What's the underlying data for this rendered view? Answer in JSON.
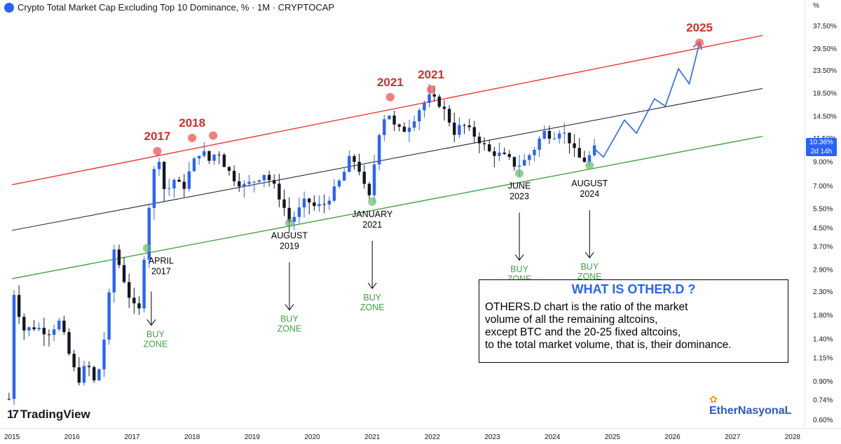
{
  "header": {
    "title": "Crypto Total Market Cap Excluding Top 10 Dominance, % · 1M · CRYPTOCAP",
    "title_icon": "crypto-cap-icon",
    "unit_label": "%"
  },
  "branding": {
    "logo_text": "TradingView",
    "logo_mark": "17",
    "author": "EtherNasyonaL"
  },
  "price_tag": {
    "value": "10.36%",
    "countdown": "2d 14h"
  },
  "info_box": {
    "title": "WHAT IS OTHER.D ?",
    "lines": [
      "OTHERS.D chart is the ratio of the market",
      "volume of all the remaining altcoins,",
      "except BTC and the 20-25 fixed altcoins,",
      "to the total market volume, that is, their dominance."
    ]
  },
  "colors": {
    "up": "#2962ff",
    "down": "#131722",
    "upper_channel": "#e53935",
    "mid_channel": "#131722",
    "lower_channel": "#43a047",
    "projection": "#2962ff",
    "buy_zone": "#43a047",
    "year_marker": "#d32f2f"
  },
  "chart_data": {
    "type": "candlestick",
    "y_scale": "log",
    "ylim": [
      0.6,
      42
    ],
    "xlim": [
      2014.8,
      2028.2
    ],
    "x_ticks": [
      "2015",
      "2016",
      "2017",
      "2018",
      "2019",
      "2020",
      "2021",
      "2022",
      "2023",
      "2024",
      "2025",
      "2026",
      "2027",
      "2028"
    ],
    "y_ticks": [
      "37.50%",
      "29.50%",
      "23.50%",
      "18.50%",
      "14.50%",
      "11.50%",
      "9.00%",
      "7.00%",
      "5.50%",
      "4.50%",
      "3.70%",
      "2.90%",
      "2.30%",
      "1.80%",
      "1.40%",
      "1.15%",
      "0.90%",
      "0.74%",
      "0.60%"
    ],
    "y_tick_values": [
      37.5,
      29.5,
      23.5,
      18.5,
      14.5,
      11.5,
      9.0,
      7.0,
      5.5,
      4.5,
      3.7,
      2.9,
      2.3,
      1.8,
      1.4,
      1.15,
      0.9,
      0.74,
      0.6
    ],
    "channels": [
      {
        "name": "upper",
        "points": [
          [
            2015.0,
            7.1
          ],
          [
            2027.5,
            34.0
          ]
        ]
      },
      {
        "name": "middle",
        "points": [
          [
            2015.0,
            4.4
          ],
          [
            2027.5,
            19.5
          ]
        ]
      },
      {
        "name": "lower",
        "points": [
          [
            2015.0,
            2.65
          ],
          [
            2027.5,
            11.8
          ]
        ]
      }
    ],
    "candle_path": [
      [
        2014.95,
        0.75
      ],
      [
        2015.0,
        2.5
      ],
      [
        2015.1,
        1.9
      ],
      [
        2015.2,
        1.55
      ],
      [
        2015.4,
        1.6
      ],
      [
        2015.6,
        1.5
      ],
      [
        2015.8,
        1.7
      ],
      [
        2015.95,
        1.2
      ],
      [
        2016.1,
        0.9
      ],
      [
        2016.25,
        1.1
      ],
      [
        2016.4,
        0.85
      ],
      [
        2016.55,
        1.5
      ],
      [
        2016.7,
        3.6
      ],
      [
        2016.85,
        2.7
      ],
      [
        2017.0,
        2.0
      ],
      [
        2017.12,
        1.9
      ],
      [
        2017.25,
        4.8
      ],
      [
        2017.35,
        8.0
      ],
      [
        2017.45,
        9.4
      ],
      [
        2017.55,
        6.4
      ],
      [
        2017.7,
        7.5
      ],
      [
        2017.85,
        6.8
      ],
      [
        2018.0,
        8.8
      ],
      [
        2018.15,
        10.3
      ],
      [
        2018.3,
        9.0
      ],
      [
        2018.42,
        10.4
      ],
      [
        2018.55,
        8.6
      ],
      [
        2018.7,
        7.6
      ],
      [
        2018.85,
        7.0
      ],
      [
        2019.0,
        7.3
      ],
      [
        2019.2,
        8.0
      ],
      [
        2019.35,
        7.1
      ],
      [
        2019.5,
        5.9
      ],
      [
        2019.62,
        4.8
      ],
      [
        2019.75,
        5.3
      ],
      [
        2019.9,
        6.1
      ],
      [
        2020.05,
        5.6
      ],
      [
        2020.2,
        5.8
      ],
      [
        2020.35,
        6.6
      ],
      [
        2020.5,
        7.7
      ],
      [
        2020.62,
        9.3
      ],
      [
        2020.75,
        9.0
      ],
      [
        2020.85,
        7.1
      ],
      [
        2020.95,
        6.2
      ],
      [
        2021.0,
        7.6
      ],
      [
        2021.1,
        12.0
      ],
      [
        2021.25,
        15.8
      ],
      [
        2021.35,
        13.2
      ],
      [
        2021.5,
        12.4
      ],
      [
        2021.65,
        13.6
      ],
      [
        2021.8,
        16.0
      ],
      [
        2021.95,
        17.8
      ],
      [
        2022.1,
        16.9
      ],
      [
        2022.25,
        14.8
      ],
      [
        2022.35,
        12.2
      ],
      [
        2022.5,
        13.4
      ],
      [
        2022.65,
        12.3
      ],
      [
        2022.8,
        11.2
      ],
      [
        2022.95,
        10.0
      ],
      [
        2023.1,
        9.8
      ],
      [
        2023.25,
        9.4
      ],
      [
        2023.4,
        8.6
      ],
      [
        2023.55,
        9.2
      ],
      [
        2023.7,
        10.4
      ],
      [
        2023.85,
        12.4
      ],
      [
        2024.0,
        11.8
      ],
      [
        2024.12,
        12.6
      ],
      [
        2024.25,
        11.8
      ],
      [
        2024.4,
        9.6
      ],
      [
        2024.52,
        9.1
      ],
      [
        2024.62,
        9.6
      ],
      [
        2024.7,
        10.36
      ]
    ],
    "projection": [
      [
        2024.7,
        10.36
      ],
      [
        2024.85,
        9.5
      ],
      [
        2025.2,
        14.0
      ],
      [
        2025.4,
        12.2
      ],
      [
        2025.7,
        17.5
      ],
      [
        2025.88,
        16.2
      ],
      [
        2026.1,
        24.0
      ],
      [
        2026.28,
        20.5
      ],
      [
        2026.45,
        31.5
      ]
    ],
    "tops": [
      {
        "label": "2017",
        "x": 2017.42,
        "y": 10.1
      },
      {
        "label": "2018",
        "x": 2018.0,
        "y": 11.6
      },
      {
        "label": "",
        "x": 2018.35,
        "y": 11.9
      },
      {
        "label": "2021",
        "x": 2021.3,
        "y": 17.8
      },
      {
        "label": "2021",
        "x": 2021.98,
        "y": 19.3
      },
      {
        "label": "2025",
        "x": 2026.45,
        "y": 31.5
      }
    ],
    "bottoms": [
      {
        "label_lines": [
          "APRIL",
          "2017"
        ],
        "x": 2017.25,
        "y": 3.65,
        "buy_zone": true
      },
      {
        "label_lines": [
          "AUGUST",
          "2019"
        ],
        "x": 2019.62,
        "y": 4.75,
        "buy_zone": true
      },
      {
        "label_lines": [
          "JANUARY",
          "2021"
        ],
        "x": 2021.0,
        "y": 5.95,
        "buy_zone": true
      },
      {
        "label_lines": [
          "JUNE",
          "2023"
        ],
        "x": 2023.45,
        "y": 8.0,
        "buy_zone": true
      },
      {
        "label_lines": [
          "AUGUST",
          "2024"
        ],
        "x": 2024.62,
        "y": 8.7,
        "buy_zone": true
      }
    ],
    "buy_zone_lines": [
      "BUY",
      "ZONE"
    ]
  }
}
